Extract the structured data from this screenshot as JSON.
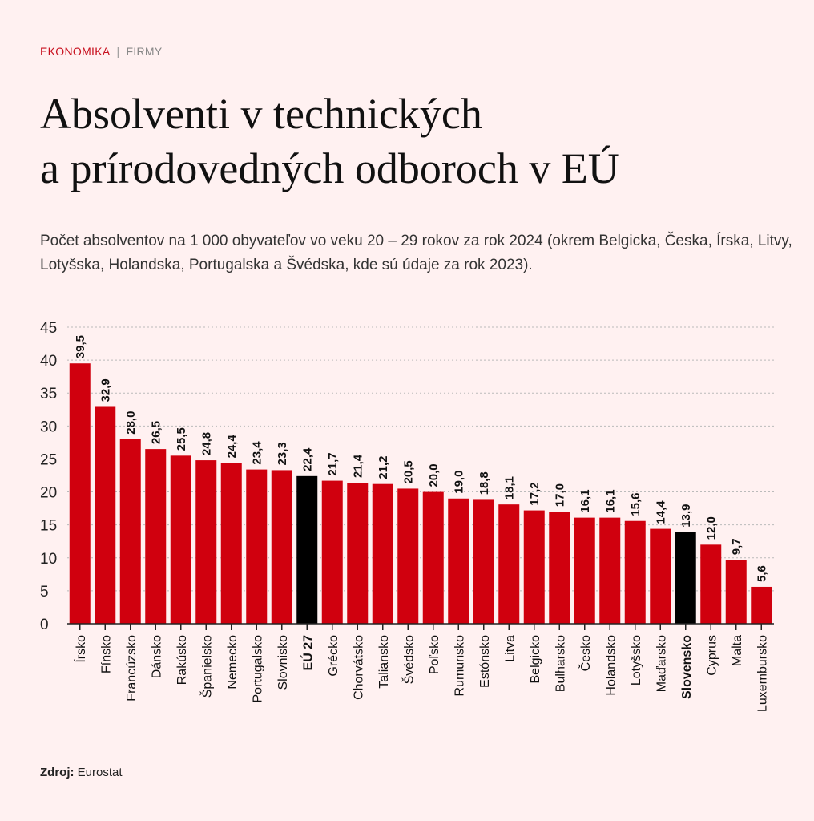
{
  "header": {
    "section": "EKONOMIKA",
    "separator": "|",
    "subsection": "FIRMY"
  },
  "title_line1": "Absolventi v technických",
  "title_line2": "a prírodovedných odboroch v EÚ",
  "description": "Počet absolventov na 1 000 obyvateľov vo veku 20 – 29 rokov za rok 2024 (okrem Belgicka, Česka, Írska, Litvy, Lotyšska, Holandska, Portugalska a Švédska, kde sú údaje za rok 2023).",
  "source_label": "Zdroj:",
  "source_value": "Eurostat",
  "colors": {
    "bar": "#d0000e",
    "highlight": "#000000",
    "background": "#fff1f1"
  },
  "chart_data": {
    "type": "bar",
    "title": "Absolventi v technických a prírodovedných odboroch v EÚ",
    "xlabel": "",
    "ylabel": "",
    "ylim": [
      0,
      45
    ],
    "yticks": [
      0,
      5,
      10,
      15,
      20,
      25,
      30,
      35,
      40,
      45
    ],
    "grid": true,
    "categories": [
      "Írsko",
      "Fínsko",
      "Francúzsko",
      "Dánsko",
      "Rakúsko",
      "Španielsko",
      "Nemecko",
      "Portugalsko",
      "Slovnisko",
      "EÚ 27",
      "Grécko",
      "Chorvátsko",
      "Taliansko",
      "Švédsko",
      "Poľsko",
      "Rumunsko",
      "Estónsko",
      "Litva",
      "Belgicko",
      "Bulharsko",
      "Česko",
      "Holandsko",
      "Lotyšsko",
      "Maďarsko",
      "Slovensko",
      "Cyprus",
      "Malta",
      "Luxembursko"
    ],
    "values": [
      39.5,
      32.9,
      28.0,
      26.5,
      25.5,
      24.8,
      24.4,
      23.4,
      23.3,
      22.4,
      21.7,
      21.4,
      21.2,
      20.5,
      20.0,
      19.0,
      18.8,
      18.1,
      17.2,
      17.0,
      16.1,
      16.1,
      15.6,
      14.4,
      13.9,
      12.0,
      9.7,
      5.6
    ],
    "highlighted": [
      "EÚ 27",
      "Slovensko"
    ]
  }
}
